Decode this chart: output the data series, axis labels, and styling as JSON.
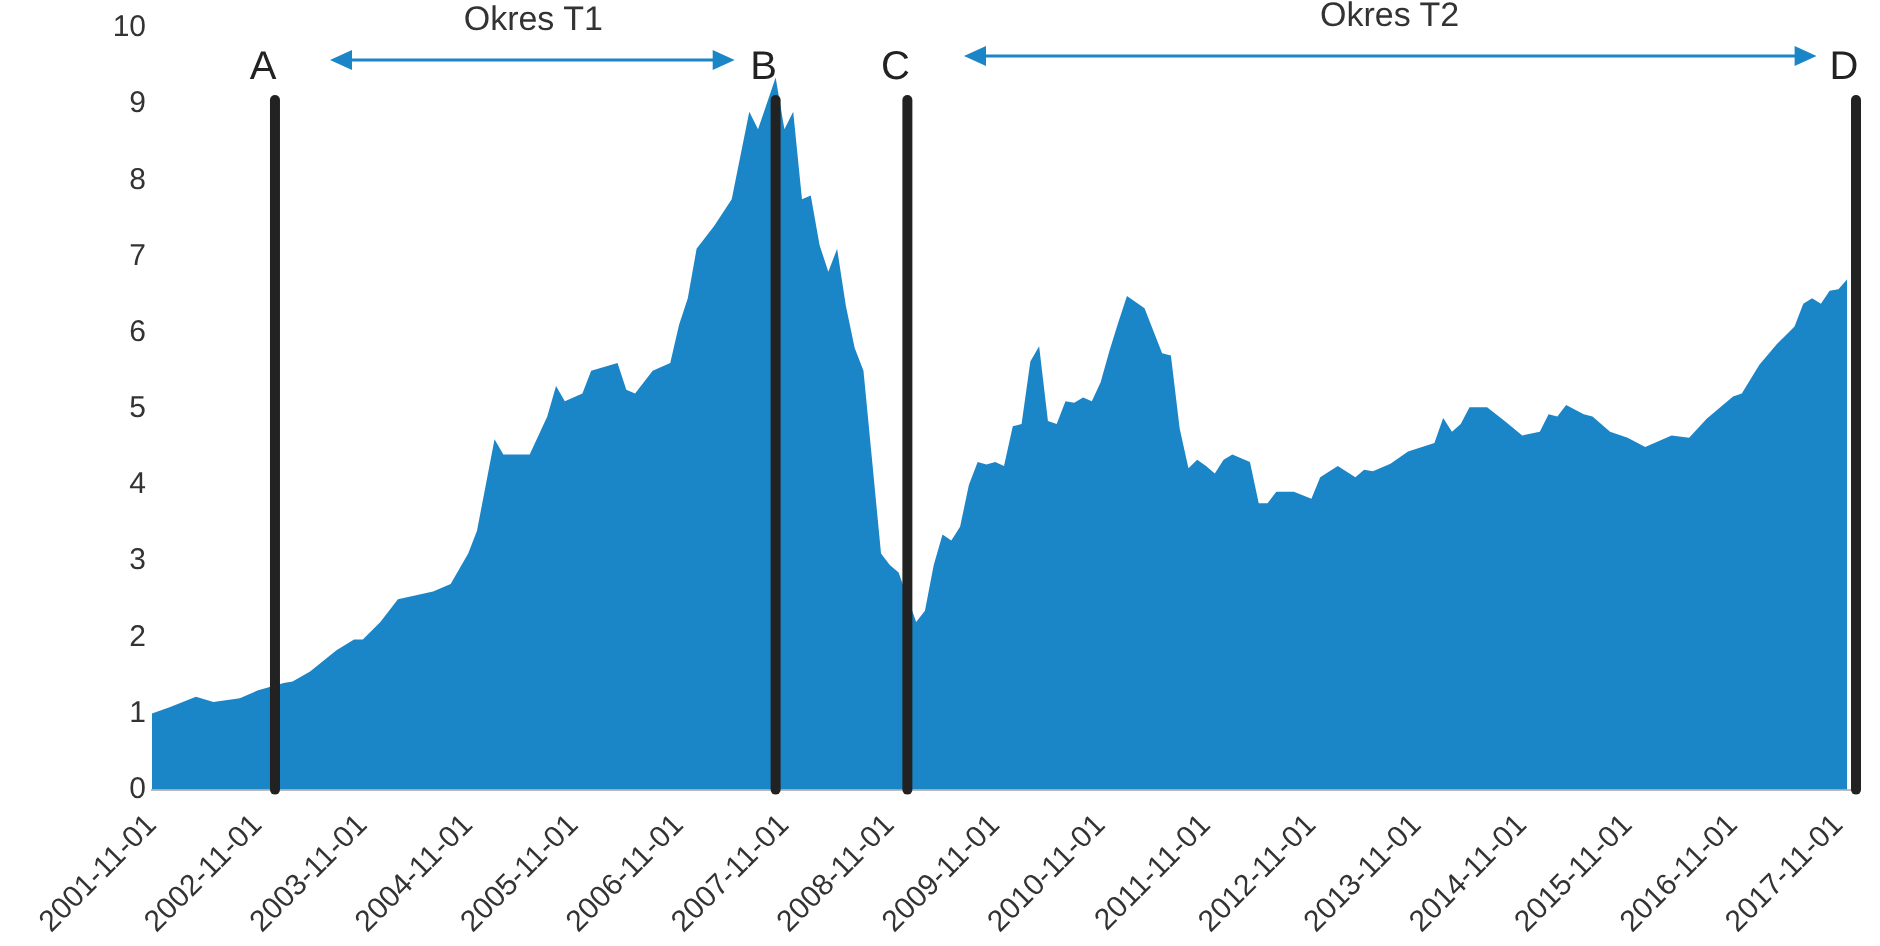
{
  "chart_data": {
    "type": "area",
    "grid": false,
    "legend": false,
    "x": [
      "2001-11",
      "2002-01",
      "2002-04",
      "2002-06",
      "2002-09",
      "2002-11",
      "2003-02",
      "2003-03",
      "2003-05",
      "2003-08",
      "2003-10",
      "2003-11",
      "2004-01",
      "2004-03",
      "2004-07",
      "2004-09",
      "2004-11",
      "2004-12",
      "2005-02",
      "2005-03",
      "2005-06",
      "2005-08",
      "2005-09",
      "2005-10",
      "2005-12",
      "2006-01",
      "2006-04",
      "2006-05",
      "2006-06",
      "2006-08",
      "2006-10",
      "2006-11",
      "2006-12",
      "2007-01",
      "2007-03",
      "2007-05",
      "2007-07",
      "2007-08",
      "2007-10",
      "2007-11",
      "2007-12",
      "2008-01",
      "2008-02",
      "2008-03",
      "2008-04",
      "2008-05",
      "2008-06",
      "2008-07",
      "2008-08",
      "2008-09",
      "2008-10",
      "2008-11",
      "2008-12",
      "2009-02",
      "2009-03",
      "2009-04",
      "2009-05",
      "2009-06",
      "2009-07",
      "2009-08",
      "2009-09",
      "2009-10",
      "2009-11",
      "2009-12",
      "2010-01",
      "2010-02",
      "2010-03",
      "2010-04",
      "2010-05",
      "2010-06",
      "2010-07",
      "2010-08",
      "2010-09",
      "2010-10",
      "2010-11",
      "2010-12",
      "2011-01",
      "2011-02",
      "2011-04",
      "2011-06",
      "2011-07",
      "2011-08",
      "2011-09",
      "2011-10",
      "2011-11",
      "2011-12",
      "2012-01",
      "2012-02",
      "2012-04",
      "2012-05",
      "2012-06",
      "2012-07",
      "2012-09",
      "2012-11",
      "2012-12",
      "2013-02",
      "2013-04",
      "2013-05",
      "2013-06",
      "2013-08",
      "2013-10",
      "2014-01",
      "2014-02",
      "2014-03",
      "2014-04",
      "2014-05",
      "2014-07",
      "2014-09",
      "2014-11",
      "2015-01",
      "2015-02",
      "2015-03",
      "2015-04",
      "2015-06",
      "2015-07",
      "2015-09",
      "2015-11",
      "2016-01",
      "2016-04",
      "2016-06",
      "2016-08",
      "2016-11",
      "2016-12",
      "2017-02",
      "2017-04",
      "2017-06",
      "2017-07",
      "2017-08",
      "2017-09",
      "2017-10",
      "2017-11",
      "2017-12"
    ],
    "series": [
      {
        "color": "#1a86c8",
        "values": [
          1.0,
          1.08,
          1.22,
          1.15,
          1.2,
          1.3,
          1.4,
          1.42,
          1.55,
          1.83,
          1.97,
          1.97,
          2.2,
          2.5,
          2.6,
          2.7,
          3.1,
          3.4,
          4.6,
          4.4,
          4.4,
          4.9,
          5.3,
          5.1,
          5.2,
          5.5,
          5.6,
          5.25,
          5.2,
          5.5,
          5.6,
          6.1,
          6.45,
          7.1,
          7.4,
          7.75,
          8.9,
          8.67,
          9.35,
          8.67,
          8.9,
          7.75,
          7.8,
          7.15,
          6.8,
          7.1,
          6.35,
          5.8,
          5.5,
          4.3,
          3.1,
          2.95,
          2.85,
          2.2,
          2.35,
          2.95,
          3.35,
          3.27,
          3.45,
          4.0,
          4.3,
          4.27,
          4.3,
          4.25,
          4.77,
          4.8,
          5.62,
          5.82,
          4.84,
          4.8,
          5.1,
          5.08,
          5.15,
          5.1,
          5.35,
          5.76,
          6.13,
          6.48,
          6.32,
          5.73,
          5.7,
          4.74,
          4.22,
          4.33,
          4.25,
          4.15,
          4.33,
          4.4,
          4.3,
          3.76,
          3.76,
          3.91,
          3.91,
          3.82,
          4.1,
          4.25,
          4.1,
          4.2,
          4.18,
          4.28,
          4.44,
          4.55,
          4.88,
          4.7,
          4.8,
          5.02,
          5.02,
          4.84,
          4.65,
          4.7,
          4.93,
          4.9,
          5.05,
          4.93,
          4.9,
          4.7,
          4.62,
          4.5,
          4.65,
          4.62,
          4.87,
          5.16,
          5.2,
          5.58,
          5.85,
          6.08,
          6.38,
          6.45,
          6.38,
          6.55,
          6.57,
          6.7
        ]
      }
    ],
    "xlim": [
      "2001-11",
      "2018-01"
    ],
    "xticks": [
      "2001-11-01",
      "2002-11-01",
      "2003-11-01",
      "2004-11-01",
      "2005-11-01",
      "2006-11-01",
      "2007-11-01",
      "2008-11-01",
      "2009-11-01",
      "2010-11-01",
      "2011-11-01",
      "2012-11-01",
      "2013-11-01",
      "2014-11-01",
      "2015-11-01",
      "2016-11-01",
      "2017-11-01"
    ],
    "ylim": [
      0,
      10
    ],
    "yticks": [
      0,
      1,
      2,
      3,
      4,
      5,
      6,
      7,
      8,
      9,
      10
    ],
    "ref_lines": [
      {
        "axis": "x",
        "value": "2003-01",
        "label": "A",
        "color": "#222222"
      },
      {
        "axis": "x",
        "value": "2007-10",
        "label": "B",
        "color": "#222222"
      },
      {
        "axis": "x",
        "value": "2009-01",
        "label": "C",
        "color": "#222222"
      },
      {
        "axis": "x",
        "value": "2018-01",
        "label": "D",
        "color": "#222222"
      }
    ],
    "annotations": [
      "Okres T1",
      "Okres T2"
    ]
  }
}
